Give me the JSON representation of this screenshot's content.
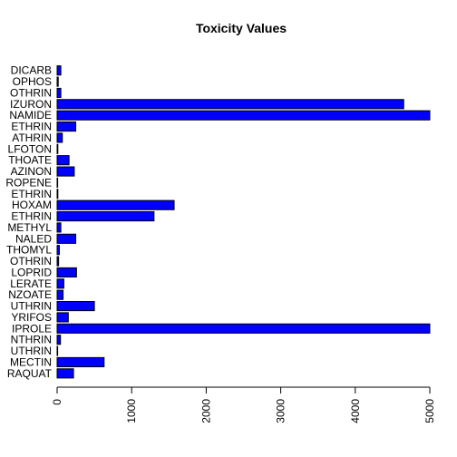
{
  "chart_data": {
    "type": "bar",
    "orientation": "horizontal",
    "title": "Toxicity Values",
    "xlabel": "",
    "ylabel": "",
    "bar_color": "#0000ff",
    "xlim": [
      0,
      5000
    ],
    "xticks": [
      "0",
      "1000",
      "2000",
      "3000",
      "4000",
      "5000"
    ],
    "grid": false,
    "categories": [
      "ALDICARB",
      "AZINPHOS",
      "BIFENTHRIN",
      "BUPROFEZIN",
      "CYANTRANILIPROLE AMIDE",
      "CYFLUTHRIN",
      "CYPERMETHRIN",
      "DISULFOTON",
      "DIMETHOATE",
      "DIAZINON",
      "DICHLOROPROPENE",
      "ESFENVALERATE PERMETHRIN",
      "INDOXACARB METHOXAM",
      "LAMBDA-CYHALOTHRIN PERMETHRIN",
      "METHYL",
      "NALED",
      "METHOMYL",
      "DELTAMETHRIN",
      "IMIDACLOPRID",
      "FENVALERATE",
      "BENZOATE",
      "ZETA-CYPERMETHRIN FLUTHRIN",
      "CHLORPYRIFOS",
      "CHLORANTRANILIPROLE",
      "TEFLUTHRIN",
      "PYRETHRIN ESFLUTHRIN",
      "ABAMECTIN",
      "PARAQUAT"
    ],
    "category_labels_shown": [
      "DICARB",
      "OPHOS",
      "OTHRIN",
      "IZURON",
      "NAMIDE",
      "ETHRIN",
      "ATHRIN",
      "LFOTON",
      "THOATE",
      "AZINON",
      "ROPENE",
      "ETHRIN",
      "HOXAM",
      "ETHRIN",
      "METHYL",
      "NALED",
      "THOMYL",
      "OTHRIN",
      "LOPRID",
      "LERATE",
      "NZOATE",
      "UTHRIN",
      "YRIFOS",
      "IPROLE",
      "NTHRIN",
      "UTHRIN",
      "MECTIN",
      "RAQUAT"
    ],
    "values": [
      50,
      15,
      50,
      4650,
      5000,
      250,
      70,
      10,
      160,
      230,
      0,
      10,
      1570,
      1300,
      50,
      250,
      30,
      20,
      260,
      90,
      80,
      500,
      150,
      5000,
      45,
      0,
      630,
      220
    ]
  }
}
